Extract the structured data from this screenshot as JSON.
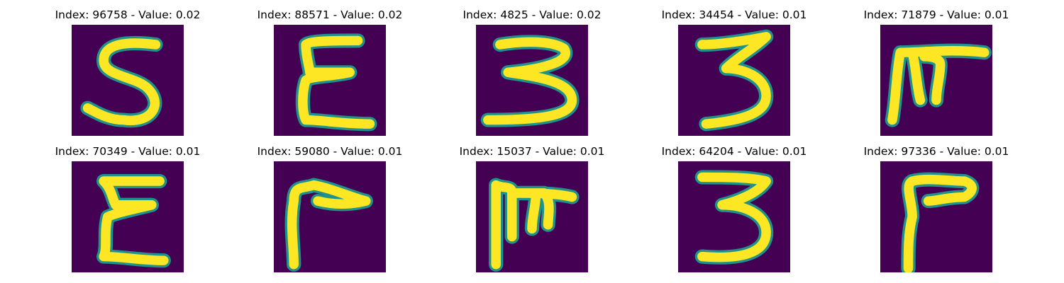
{
  "colors": {
    "background": "#440154",
    "stroke_outer": "#21918c",
    "stroke_inner": "#fde725",
    "text": "#000000"
  },
  "panels": [
    {
      "title": "Index: 96758 - Value: 0.02",
      "glyph": "5"
    },
    {
      "title": "Index: 88571 - Value: 0.02",
      "glyph": "mirrored-3"
    },
    {
      "title": "Index: 4825 - Value: 0.02",
      "glyph": "3"
    },
    {
      "title": "Index: 34454 - Value: 0.01",
      "glyph": "3"
    },
    {
      "title": "Index: 71879 - Value: 0.01",
      "glyph": "rotated-m"
    },
    {
      "title": "Index: 70349 - Value: 0.01",
      "glyph": "mirrored-3"
    },
    {
      "title": "Index: 59080 - Value: 0.01",
      "glyph": "rotated-L"
    },
    {
      "title": "Index: 15037 - Value: 0.01",
      "glyph": "rotated-m"
    },
    {
      "title": "Index: 64204 - Value: 0.01",
      "glyph": "3"
    },
    {
      "title": "Index: 97336 - Value: 0.01",
      "glyph": "rotated-L"
    }
  ]
}
